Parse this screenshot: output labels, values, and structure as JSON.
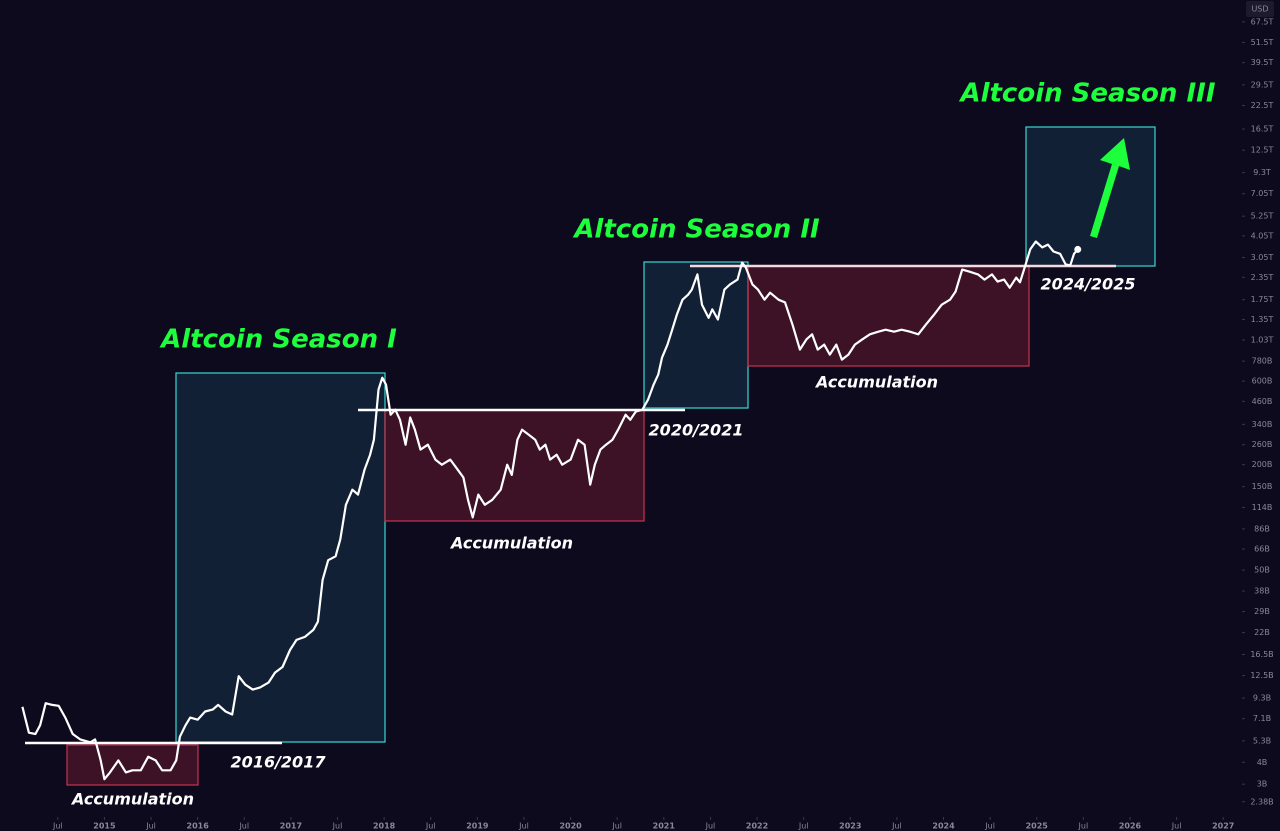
{
  "chart_data": {
    "type": "line",
    "currency": "USD",
    "log_scale": true,
    "xlim": [
      2013.88,
      2027.18
    ],
    "ylim": [
      2,
      90000
    ],
    "xticks": [
      {
        "value": 2014.5,
        "label": "Jul"
      },
      2015,
      {
        "value": 2015.5,
        "label": "Jul"
      },
      2016,
      {
        "value": 2016.5,
        "label": "Jul"
      },
      2017,
      {
        "value": 2017.5,
        "label": "Jul"
      },
      2018,
      {
        "value": 2018.5,
        "label": "Jul"
      },
      2019,
      {
        "value": 2019.5,
        "label": "Jul"
      },
      2020,
      {
        "value": 2020.5,
        "label": "Jul"
      },
      2021,
      {
        "value": 2021.5,
        "label": "Jul"
      },
      2022,
      {
        "value": 2022.5,
        "label": "Jul"
      },
      2023,
      {
        "value": 2023.5,
        "label": "Jul"
      },
      2024,
      {
        "value": 2024.5,
        "label": "Jul"
      },
      2025,
      {
        "value": 2025.5,
        "label": "Jul"
      },
      2026,
      {
        "value": 2026.5,
        "label": "Jul"
      },
      2027
    ],
    "yticks": [
      {
        "value": 2.38,
        "label": "2.38B"
      },
      {
        "value": 3,
        "label": "3B"
      },
      {
        "value": 4,
        "label": "4B"
      },
      {
        "value": 5.3,
        "label": "5.3B"
      },
      {
        "value": 7.1,
        "label": "7.1B"
      },
      {
        "value": 9.3,
        "label": "9.3B"
      },
      {
        "value": 12.5,
        "label": "12.5B"
      },
      {
        "value": 16.5,
        "label": "16.5B"
      },
      {
        "value": 22,
        "label": "22B"
      },
      {
        "value": 29,
        "label": "29B"
      },
      {
        "value": 38,
        "label": "38B"
      },
      {
        "value": 50,
        "label": "50B"
      },
      {
        "value": 66,
        "label": "66B"
      },
      {
        "value": 86,
        "label": "86B"
      },
      {
        "value": 114,
        "label": "114B"
      },
      {
        "value": 150,
        "label": "150B"
      },
      {
        "value": 200,
        "label": "200B"
      },
      {
        "value": 260,
        "label": "260B"
      },
      {
        "value": 340,
        "label": "340B"
      },
      {
        "value": 460,
        "label": "460B"
      },
      {
        "value": 600,
        "label": "600B"
      },
      {
        "value": 780,
        "label": "780B"
      },
      {
        "value": 1030,
        "label": "1.03T"
      },
      {
        "value": 1350,
        "label": "1.35T"
      },
      {
        "value": 1750,
        "label": "1.75T"
      },
      {
        "value": 2350,
        "label": "2.35T"
      },
      {
        "value": 3050,
        "label": "3.05T"
      },
      {
        "value": 4050,
        "label": "4.05T"
      },
      {
        "value": 5250,
        "label": "5.25T"
      },
      {
        "value": 7050,
        "label": "7.05T"
      },
      {
        "value": 9300,
        "label": "9.3T"
      },
      {
        "value": 12500,
        "label": "12.5T"
      },
      {
        "value": 16500,
        "label": "16.5T"
      },
      {
        "value": 22500,
        "label": "22.5T"
      },
      {
        "value": 29500,
        "label": "29.5T"
      },
      {
        "value": 39500,
        "label": "39.5T"
      },
      {
        "value": 51500,
        "label": "51.5T"
      },
      {
        "value": 67500,
        "label": "67.5T"
      }
    ],
    "series": [
      {
        "color": "#ffffff",
        "x": [
          2014.12,
          2014.19,
          2014.26,
          2014.31,
          2014.37,
          2014.44,
          2014.51,
          2014.58,
          2014.66,
          2014.74,
          2014.85,
          2014.9,
          2014.96,
          2015.0,
          2015.06,
          2015.15,
          2015.23,
          2015.3,
          2015.39,
          2015.47,
          2015.55,
          2015.62,
          2015.71,
          2015.77,
          2015.81,
          2015.87,
          2015.92,
          2016.0,
          2016.08,
          2016.16,
          2016.22,
          2016.3,
          2016.37,
          2016.44,
          2016.51,
          2016.59,
          2016.67,
          2016.76,
          2016.83,
          2016.91,
          2016.99,
          2017.06,
          2017.15,
          2017.24,
          2017.29,
          2017.34,
          2017.4,
          2017.48,
          2017.53,
          2017.59,
          2017.66,
          2017.72,
          2017.79,
          2017.85,
          2017.89,
          2017.94,
          2017.98,
          2018.02,
          2018.07,
          2018.12,
          2018.17,
          2018.23,
          2018.28,
          2018.33,
          2018.39,
          2018.47,
          2018.55,
          2018.62,
          2018.71,
          2018.79,
          2018.85,
          2018.9,
          2018.95,
          2019.01,
          2019.08,
          2019.16,
          2019.25,
          2019.32,
          2019.37,
          2019.43,
          2019.48,
          2019.55,
          2019.62,
          2019.67,
          2019.73,
          2019.78,
          2019.85,
          2019.91,
          2020.0,
          2020.08,
          2020.15,
          2020.21,
          2020.26,
          2020.32,
          2020.38,
          2020.45,
          2020.51,
          2020.59,
          2020.64,
          2020.7,
          2020.77,
          2020.83,
          2020.89,
          2020.94,
          2020.98,
          2021.04,
          2021.09,
          2021.14,
          2021.2,
          2021.26,
          2021.3,
          2021.36,
          2021.41,
          2021.48,
          2021.52,
          2021.58,
          2021.65,
          2021.71,
          2021.79,
          2021.84,
          2021.88,
          2021.95,
          2022.01,
          2022.08,
          2022.14,
          2022.23,
          2022.3,
          2022.38,
          2022.46,
          2022.53,
          2022.59,
          2022.65,
          2022.72,
          2022.78,
          2022.85,
          2022.91,
          2022.98,
          2023.05,
          2023.13,
          2023.21,
          2023.3,
          2023.38,
          2023.47,
          2023.55,
          2023.64,
          2023.73,
          2023.81,
          2023.9,
          2023.98,
          2024.07,
          2024.13,
          2024.2,
          2024.28,
          2024.37,
          2024.44,
          2024.52,
          2024.58,
          2024.65,
          2024.71,
          2024.78,
          2024.82,
          2024.88,
          2024.93,
          2024.99,
          2025.06,
          2025.12,
          2025.18,
          2025.25,
          2025.31,
          2025.36,
          2025.4,
          2025.44
        ],
        "values": [
          8.3,
          5.9,
          5.8,
          6.5,
          8.7,
          8.5,
          8.4,
          7.2,
          5.8,
          5.4,
          5.2,
          5.4,
          4.1,
          3.2,
          3.5,
          4.1,
          3.5,
          3.6,
          3.6,
          4.3,
          4.1,
          3.6,
          3.6,
          4.1,
          5.6,
          6.5,
          7.2,
          7.0,
          7.8,
          8.0,
          8.5,
          7.8,
          7.5,
          12.4,
          11.1,
          10.4,
          10.7,
          11.4,
          13.0,
          14.0,
          17.5,
          20,
          20.8,
          22.8,
          25.4,
          44,
          57,
          60,
          75,
          118,
          144,
          135,
          187,
          228,
          278,
          537,
          628,
          573,
          386,
          412,
          361,
          260,
          372,
          317,
          244,
          260,
          214,
          200,
          214,
          187,
          169,
          126,
          100,
          135,
          118,
          126,
          144,
          200,
          175,
          278,
          317,
          297,
          278,
          244,
          260,
          214,
          228,
          200,
          214,
          278,
          260,
          154,
          200,
          244,
          260,
          278,
          317,
          386,
          361,
          402,
          412,
          470,
          573,
          653,
          816,
          970,
          1180,
          1440,
          1750,
          1870,
          2000,
          2440,
          1640,
          1380,
          1540,
          1350,
          2000,
          2140,
          2280,
          2850,
          2670,
          2140,
          2000,
          1750,
          1920,
          1750,
          1690,
          1260,
          908,
          1040,
          1110,
          908,
          970,
          851,
          970,
          796,
          851,
          970,
          1040,
          1110,
          1150,
          1180,
          1150,
          1180,
          1150,
          1110,
          1260,
          1440,
          1640,
          1750,
          1950,
          2600,
          2530,
          2440,
          2280,
          2440,
          2220,
          2280,
          2050,
          2340,
          2200,
          2780,
          3390,
          3760,
          3480,
          3610,
          3300,
          3200,
          2780,
          2750,
          3200,
          3390
        ]
      }
    ],
    "annotations": {
      "season_1": "Altcoin Season I",
      "season_2": "Altcoin Season II",
      "season_3": "Altcoin Season III",
      "accumulation_1": "Accumulation",
      "accumulation_2": "Accumulation",
      "accumulation_3": "Accumulation",
      "period_1": "2016/2017",
      "period_2": "2020/2021",
      "period_3": "2024/2025"
    }
  }
}
